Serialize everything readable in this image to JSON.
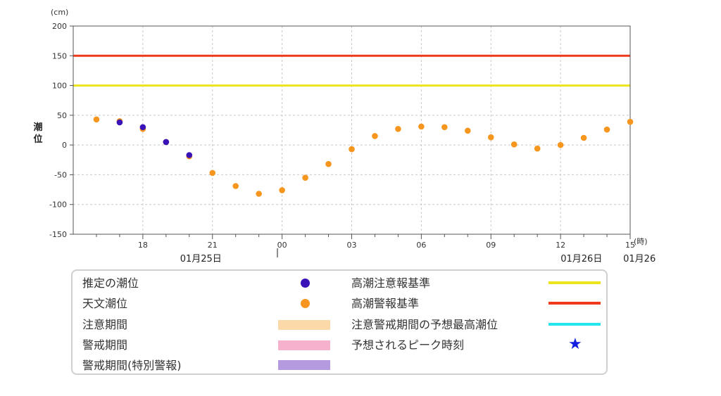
{
  "colors": {
    "estimated": "#3a13b8",
    "astronomical": "#f7961e",
    "warning_line": "#ee3a1a",
    "caution_line": "#ece51c",
    "forecast_line": "#22e6ea",
    "caution_band": "#fbd9a8",
    "warning_band": "#f6b2cd",
    "special_band": "#b69ae0",
    "peak_star": "#1420e0"
  },
  "chart_data": {
    "type": "scatter",
    "y_unit": "(cm)",
    "ylabel": "潮位",
    "x_unit": "(時)",
    "ylim": [
      -150,
      200
    ],
    "yticks": [
      200,
      150,
      100,
      50,
      0,
      -50,
      -100,
      -150
    ],
    "xlim": [
      15,
      39
    ],
    "xticks": [
      {
        "x": 18,
        "label": "18"
      },
      {
        "x": 21,
        "label": "21"
      },
      {
        "x": 24,
        "label": "00"
      },
      {
        "x": 27,
        "label": "03"
      },
      {
        "x": 30,
        "label": "06"
      },
      {
        "x": 33,
        "label": "09"
      },
      {
        "x": 36,
        "label": "12"
      },
      {
        "x": 39,
        "label": "15"
      }
    ],
    "date_labels": [
      {
        "x": 20.5,
        "label": "01月25日"
      },
      {
        "x": 36.9,
        "label": "01月26日"
      },
      {
        "x": 39.4,
        "label": "01月26"
      }
    ],
    "grid": true,
    "reference_lines": [
      {
        "name": "高潮警報基準",
        "y": 150
      },
      {
        "name": "高潮注意報基準",
        "y": 100
      }
    ],
    "series": [
      {
        "name": "天文潮位",
        "x": [
          16,
          17,
          18,
          19,
          20,
          21,
          22,
          23,
          24,
          25,
          26,
          27,
          28,
          29,
          30,
          31,
          32,
          33,
          34,
          35,
          36,
          37,
          38,
          39
        ],
        "values": [
          43,
          40,
          27,
          5,
          -19,
          -47,
          -69,
          -82,
          -76,
          -55,
          -32,
          -7,
          15,
          27,
          31,
          30,
          24,
          13,
          1,
          -6,
          0,
          12,
          26,
          39
        ]
      },
      {
        "name": "推定の潮位",
        "x": [
          17,
          18,
          19,
          20
        ],
        "values": [
          38,
          30,
          5,
          -17
        ]
      }
    ]
  },
  "legend": {
    "left": [
      {
        "label": "推定の潮位",
        "symbol": "dot-estimated"
      },
      {
        "label": "天文潮位",
        "symbol": "dot-astronomical"
      },
      {
        "label": "注意期間",
        "symbol": "band-caution"
      },
      {
        "label": "警戒期間",
        "symbol": "band-warning"
      },
      {
        "label": "警戒期間(特別警報)",
        "symbol": "band-special"
      }
    ],
    "right": [
      {
        "label": "高潮注意報基準",
        "symbol": "line-caution"
      },
      {
        "label": "高潮警報基準",
        "symbol": "line-warning"
      },
      {
        "label": "注意警戒期間の予想最高潮位",
        "symbol": "line-forecast"
      },
      {
        "label": "予想されるピーク時刻",
        "symbol": "star-icon",
        "glyph": "★"
      }
    ]
  }
}
